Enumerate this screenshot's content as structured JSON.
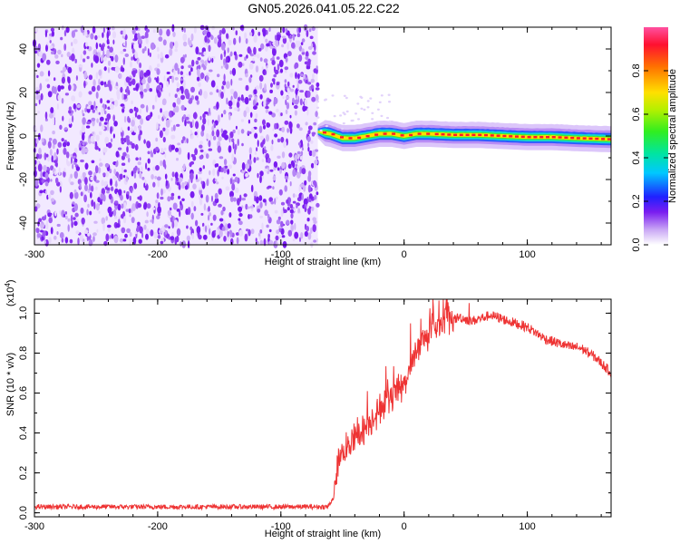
{
  "title": "GN05.2026.041.05.22.C22",
  "chart_data": [
    {
      "type": "heatmap",
      "xlabel": "Height of straight line (km)",
      "ylabel": "Frequency (Hz)",
      "xlim": [
        -300,
        168
      ],
      "ylim": [
        -50,
        50
      ],
      "xticks": [
        -300,
        -200,
        -100,
        0,
        100
      ],
      "yticks": [
        -40,
        -20,
        0,
        20,
        40
      ],
      "noise_region_x": [
        -300,
        -70
      ],
      "signal_region_x": [
        -70,
        168
      ],
      "signal_center_hz": [
        [
          -70,
          2
        ],
        [
          -60,
          1
        ],
        [
          -50,
          -1
        ],
        [
          -40,
          -1
        ],
        [
          -30,
          0
        ],
        [
          -20,
          1
        ],
        [
          -10,
          1
        ],
        [
          0,
          0
        ],
        [
          10,
          1
        ],
        [
          20,
          1
        ],
        [
          40,
          0.5
        ],
        [
          60,
          0.5
        ],
        [
          80,
          0
        ],
        [
          100,
          -0.5
        ],
        [
          120,
          -0.5
        ],
        [
          140,
          -1
        ],
        [
          168,
          -1.5
        ]
      ],
      "colorbar": {
        "label": "Normalized spectral amplitude",
        "range": [
          0,
          1
        ],
        "ticks": [
          0.0,
          0.2,
          0.4,
          0.6,
          0.8
        ]
      },
      "grid": false
    },
    {
      "type": "line",
      "xlabel": "Height of straight line (km)",
      "ylabel": "SNR (10 * v/v)",
      "yscale_label": "(x10",
      "yscale_exp": "4",
      "xlim": [
        -300,
        168
      ],
      "ylim": [
        -0.02,
        1.07
      ],
      "xticks": [
        -300,
        -200,
        -100,
        0,
        100
      ],
      "yticks": [
        0.0,
        0.2,
        0.4,
        0.6,
        0.8,
        1.0
      ],
      "series": [
        {
          "color": "#ee3333",
          "x": [
            -300,
            -250,
            -200,
            -150,
            -100,
            -80,
            -70,
            -62,
            -57,
            -54,
            -50,
            -45,
            -40,
            -35,
            -30,
            -25,
            -20,
            -15,
            -10,
            -5,
            0,
            5,
            10,
            15,
            20,
            25,
            30,
            35,
            40,
            45,
            50,
            55,
            60,
            65,
            70,
            75,
            80,
            85,
            90,
            95,
            100,
            105,
            110,
            115,
            120,
            125,
            130,
            135,
            140,
            145,
            150,
            155,
            160,
            165,
            168
          ],
          "y": [
            0.03,
            0.03,
            0.03,
            0.03,
            0.03,
            0.03,
            0.03,
            0.03,
            0.08,
            0.25,
            0.3,
            0.35,
            0.37,
            0.4,
            0.44,
            0.48,
            0.52,
            0.55,
            0.58,
            0.61,
            0.66,
            0.73,
            0.8,
            0.86,
            0.9,
            0.93,
            0.95,
            0.97,
            0.97,
            0.98,
            0.97,
            0.96,
            0.97,
            0.98,
            0.99,
            0.98,
            0.97,
            0.96,
            0.95,
            0.94,
            0.93,
            0.91,
            0.89,
            0.87,
            0.86,
            0.85,
            0.84,
            0.83,
            0.83,
            0.82,
            0.8,
            0.78,
            0.75,
            0.72,
            0.7
          ]
        }
      ],
      "grid": false
    }
  ]
}
